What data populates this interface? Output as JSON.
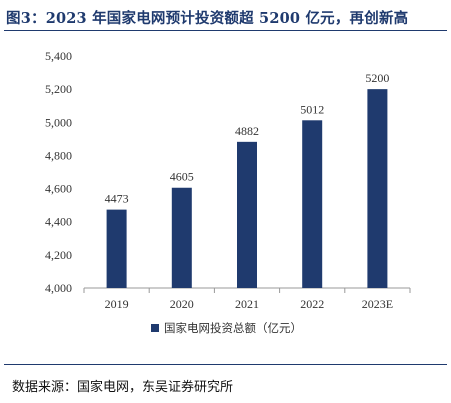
{
  "header": {
    "title": "图3：2023 年国家电网预计投资额超 5200 亿元，再创新高"
  },
  "footer": {
    "source": "数据来源：国家电网，东吴证券研究所"
  },
  "colors": {
    "bar": "#1f3a6e",
    "title": "#1f3a6e",
    "axis": "#999999",
    "text": "#333333"
  },
  "chart_data": {
    "type": "bar",
    "title": "",
    "xlabel": "",
    "ylabel": "",
    "categories": [
      "2019",
      "2020",
      "2021",
      "2022",
      "2023E"
    ],
    "series": [
      {
        "name": "国家电网投资总额（亿元）",
        "values": [
          4473,
          4605,
          4882,
          5012,
          5200
        ]
      }
    ],
    "data_labels": [
      "4473",
      "4605",
      "4882",
      "5012",
      "5200"
    ],
    "ylim": [
      4000,
      5400
    ],
    "yticks": [
      4000,
      4200,
      4400,
      4600,
      4800,
      5000,
      5200,
      5400
    ],
    "ytick_labels": [
      "4,000",
      "4,200",
      "4,400",
      "4,600",
      "4,800",
      "5,000",
      "5,200",
      "5,400"
    ],
    "grid": false,
    "legend_position": "bottom-center"
  }
}
